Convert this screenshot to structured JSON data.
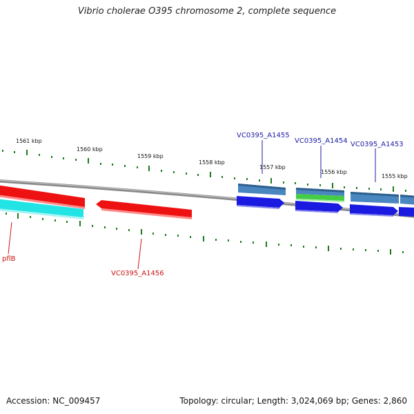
{
  "title": "Vibrio cholerae O395 chromosome 2, complete sequence",
  "footer": {
    "accession": "Accession: NC_009457",
    "summary": "Topology: circular; Length: 3,024,069 bp; Genes: 2,860"
  },
  "colors": {
    "tick": "#1a7a1a",
    "backbone": "#8a8a8a",
    "red_gene": "#ee1111",
    "cyan_gene": "#22e4e4",
    "blue_gene": "#1a1ae0",
    "steel_gene": "#4a86c0",
    "green_gene": "#44cc44",
    "label_blue": "#1a1aa8",
    "label_red": "#cc1111"
  },
  "ticks": [
    "1561 kbp",
    "1560 kbp",
    "1559 kbp",
    "1558 kbp",
    "1557 kbp",
    "1556 kbp",
    "1555 kbp"
  ],
  "genes": [
    {
      "label": "pflB",
      "color": "label_red"
    },
    {
      "label": "VC0395_A1456",
      "color": "label_red"
    },
    {
      "label": "VC0395_A1455",
      "color": "label_blue"
    },
    {
      "label": "VC0395_A1454",
      "color": "label_blue"
    },
    {
      "label": "VC0395_A1453",
      "color": "label_blue"
    }
  ]
}
